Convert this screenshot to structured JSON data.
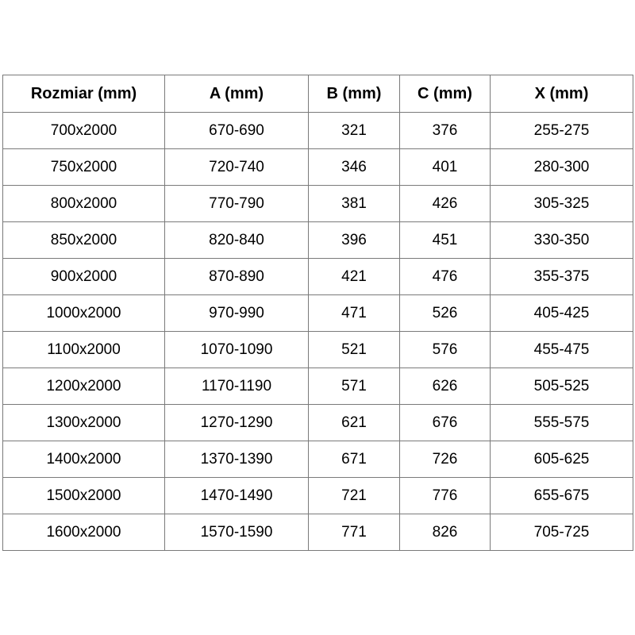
{
  "colors": {
    "background": "#ffffff",
    "border": "#7a7a7a",
    "text": "#000000"
  },
  "chart_data": {
    "type": "table",
    "columns": [
      "Rozmiar (mm)",
      "A (mm)",
      "B (mm)",
      "C (mm)",
      "X (mm)"
    ],
    "rows": [
      [
        "700x2000",
        "670-690",
        "321",
        "376",
        "255-275"
      ],
      [
        "750x2000",
        "720-740",
        "346",
        "401",
        "280-300"
      ],
      [
        "800x2000",
        "770-790",
        "381",
        "426",
        "305-325"
      ],
      [
        "850x2000",
        "820-840",
        "396",
        "451",
        "330-350"
      ],
      [
        "900x2000",
        "870-890",
        "421",
        "476",
        "355-375"
      ],
      [
        "1000x2000",
        "970-990",
        "471",
        "526",
        "405-425"
      ],
      [
        "1100x2000",
        "1070-1090",
        "521",
        "576",
        "455-475"
      ],
      [
        "1200x2000",
        "1170-1190",
        "571",
        "626",
        "505-525"
      ],
      [
        "1300x2000",
        "1270-1290",
        "621",
        "676",
        "555-575"
      ],
      [
        "1400x2000",
        "1370-1390",
        "671",
        "726",
        "605-625"
      ],
      [
        "1500x2000",
        "1470-1490",
        "721",
        "776",
        "655-675"
      ],
      [
        "1600x2000",
        "1570-1590",
        "771",
        "826",
        "705-725"
      ]
    ]
  }
}
